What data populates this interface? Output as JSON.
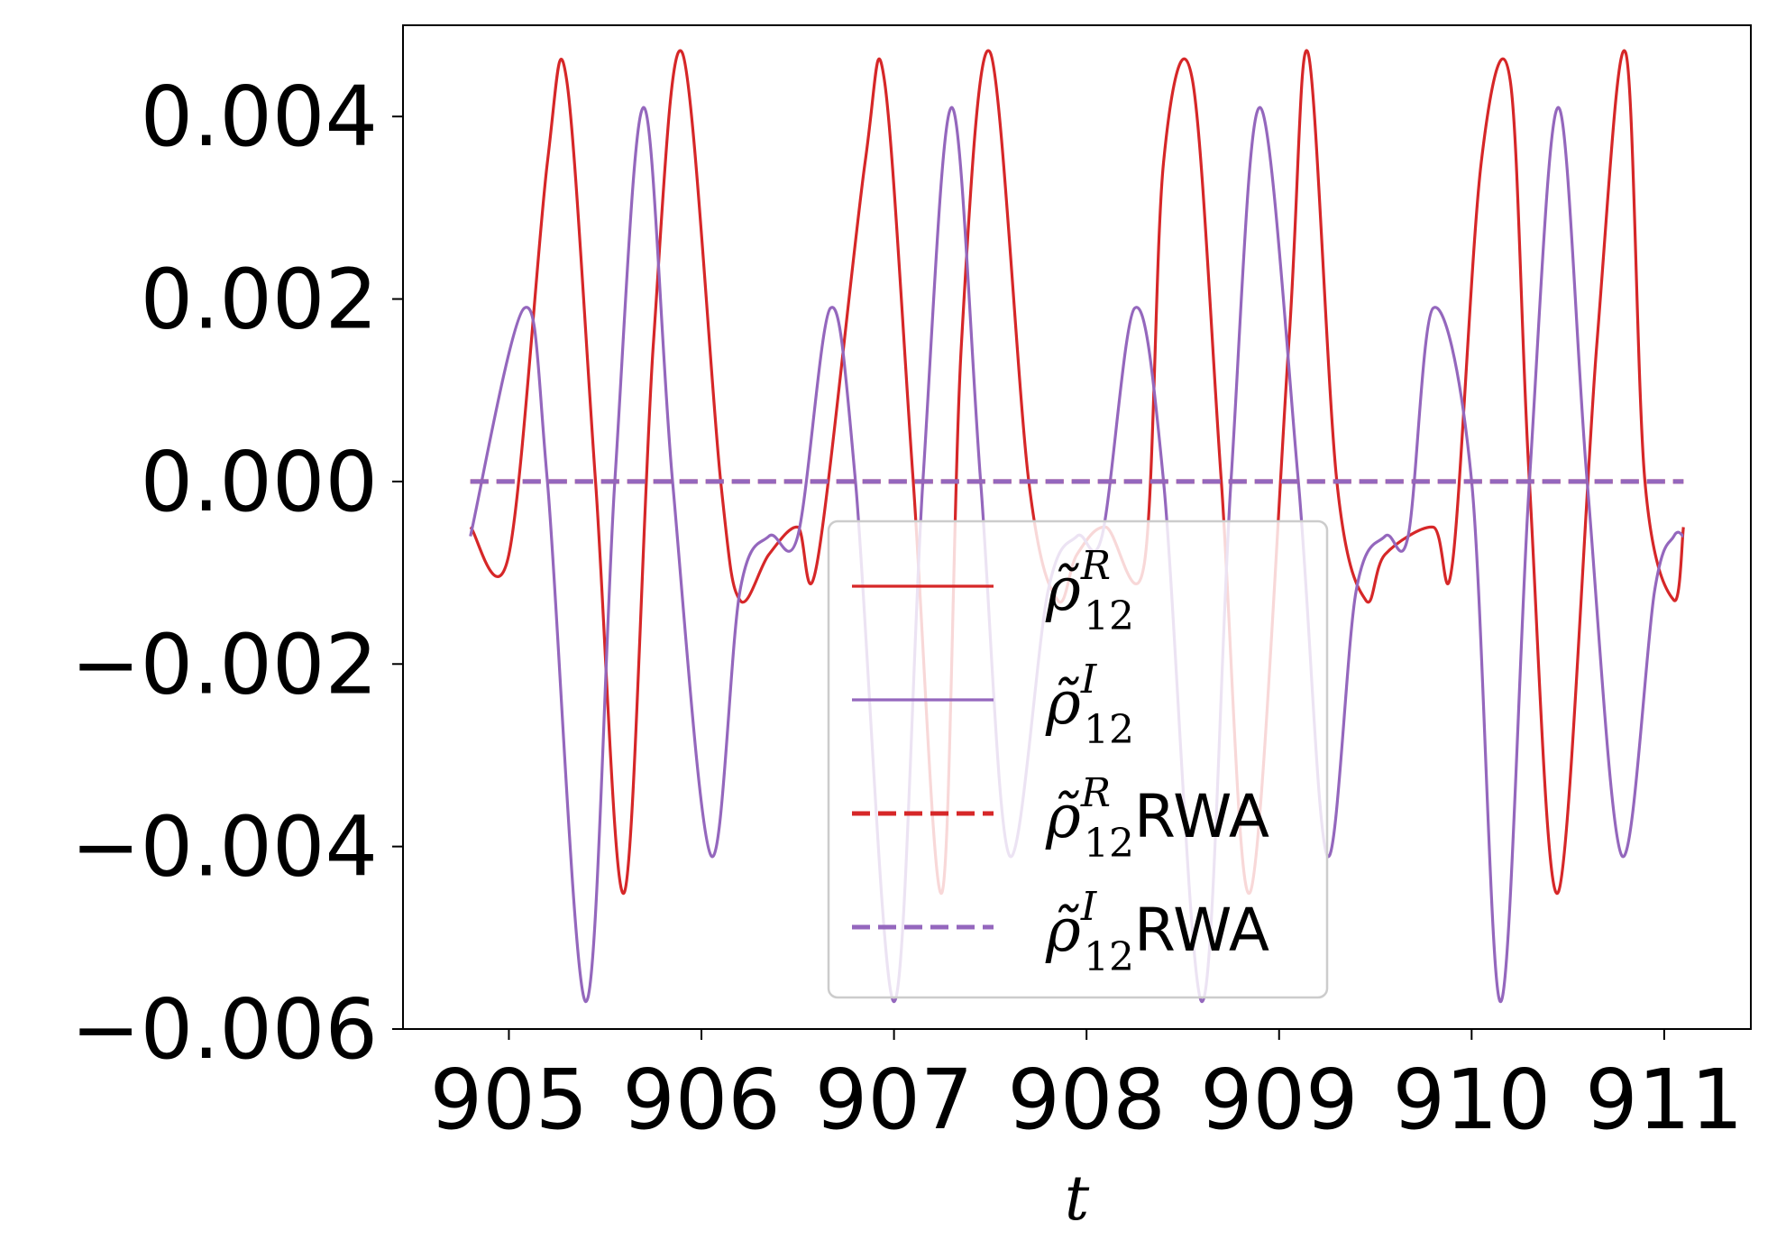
{
  "chart_data": {
    "type": "line",
    "xlabel": "t",
    "ylabel": "",
    "xlim": [
      904.45,
      911.45
    ],
    "ylim": [
      -0.006,
      0.005
    ],
    "x_ticks": [
      "905",
      "906",
      "907",
      "908",
      "909",
      "910",
      "911"
    ],
    "y_ticks": [
      "0.004",
      "0.002",
      "0.000",
      "−0.002",
      "−0.004",
      "−0.006"
    ],
    "grid": false,
    "legend_position": "lower-center",
    "series": [
      {
        "name": "ρ̃^R_12",
        "style": "solid",
        "color": "#d62728",
        "x": [
          904.8,
          905.0,
          905.2,
          905.3,
          905.45,
          905.6,
          905.75,
          905.9,
          906.1,
          906.2,
          906.35,
          906.5,
          906.6,
          906.85,
          906.95,
          907.1,
          907.25,
          907.35,
          907.5,
          907.7,
          907.85,
          907.95,
          908.1,
          908.3,
          908.4,
          908.55,
          908.7,
          908.85,
          909.05,
          909.15,
          909.3,
          909.45,
          909.55,
          909.8,
          909.9,
          910.05,
          910.2,
          910.3,
          910.45,
          910.65,
          910.8,
          910.9,
          911.05,
          911.1
        ],
        "y": [
          -0.0005,
          -0.0008,
          0.0035,
          0.0044,
          0.0,
          -0.0045,
          0.0015,
          0.0047,
          0.0,
          -0.0013,
          -0.0008,
          -0.0005,
          -0.0009,
          0.0035,
          0.0044,
          0.0,
          -0.0045,
          0.0015,
          0.0047,
          0.0,
          -0.0013,
          -0.0008,
          -0.0005,
          -0.0009,
          0.0035,
          0.0044,
          0.0,
          -0.0045,
          0.0015,
          0.0047,
          0.0,
          -0.0013,
          -0.0008,
          -0.0005,
          -0.0009,
          0.0035,
          0.0044,
          0.0,
          -0.0045,
          0.0015,
          0.0047,
          0.0,
          -0.0013,
          -0.0005
        ]
      },
      {
        "name": "ρ̃^I_12",
        "style": "solid",
        "color": "#9467bd",
        "x": [
          904.8,
          905.08,
          905.2,
          905.4,
          905.55,
          905.7,
          905.85,
          906.05,
          906.2,
          906.35,
          906.5,
          906.67,
          906.8,
          907.0,
          907.15,
          907.3,
          907.45,
          907.6,
          907.8,
          907.95,
          908.08,
          908.25,
          908.4,
          908.6,
          908.75,
          908.9,
          909.1,
          909.25,
          909.4,
          909.55,
          909.67,
          909.8,
          910.0,
          910.15,
          910.3,
          910.45,
          910.6,
          910.78,
          910.95,
          911.05,
          911.1
        ],
        "y": [
          -0.0006,
          0.0019,
          0.0,
          -0.0057,
          0.0,
          0.0041,
          0.0,
          -0.0041,
          -0.0012,
          -0.0006,
          -0.0006,
          0.0019,
          0.0,
          -0.0057,
          0.0,
          0.0041,
          0.0,
          -0.0041,
          -0.0012,
          -0.0006,
          -0.0006,
          0.0019,
          0.0,
          -0.0057,
          0.0,
          0.0041,
          0.0,
          -0.0041,
          -0.0012,
          -0.0006,
          -0.0006,
          0.0019,
          0.0,
          -0.0057,
          0.0,
          0.0041,
          0.0,
          -0.0041,
          -0.0012,
          -0.0006,
          -0.0006
        ]
      },
      {
        "name": "ρ̃^R_12RWA",
        "style": "dashed",
        "color": "#d62728",
        "x": [
          904.8,
          911.1
        ],
        "y": [
          0.0,
          0.0
        ]
      },
      {
        "name": "ρ̃^I_12RWA",
        "style": "dashed",
        "color": "#9467bd",
        "x": [
          904.8,
          911.1
        ],
        "y": [
          0.0,
          0.0
        ]
      }
    ],
    "legend": [
      {
        "base": "ρ̃",
        "sup": "R",
        "sub": "12",
        "suffix": "",
        "color": "#d62728",
        "style": "solid"
      },
      {
        "base": "ρ̃",
        "sup": "I",
        "sub": "12",
        "suffix": "",
        "color": "#9467bd",
        "style": "solid"
      },
      {
        "base": "ρ̃",
        "sup": "R",
        "sub": "12",
        "suffix": "RWA",
        "color": "#d62728",
        "style": "dashed"
      },
      {
        "base": "ρ̃",
        "sup": "I",
        "sub": "12",
        "suffix": "RWA",
        "color": "#9467bd",
        "style": "dashed"
      }
    ]
  }
}
